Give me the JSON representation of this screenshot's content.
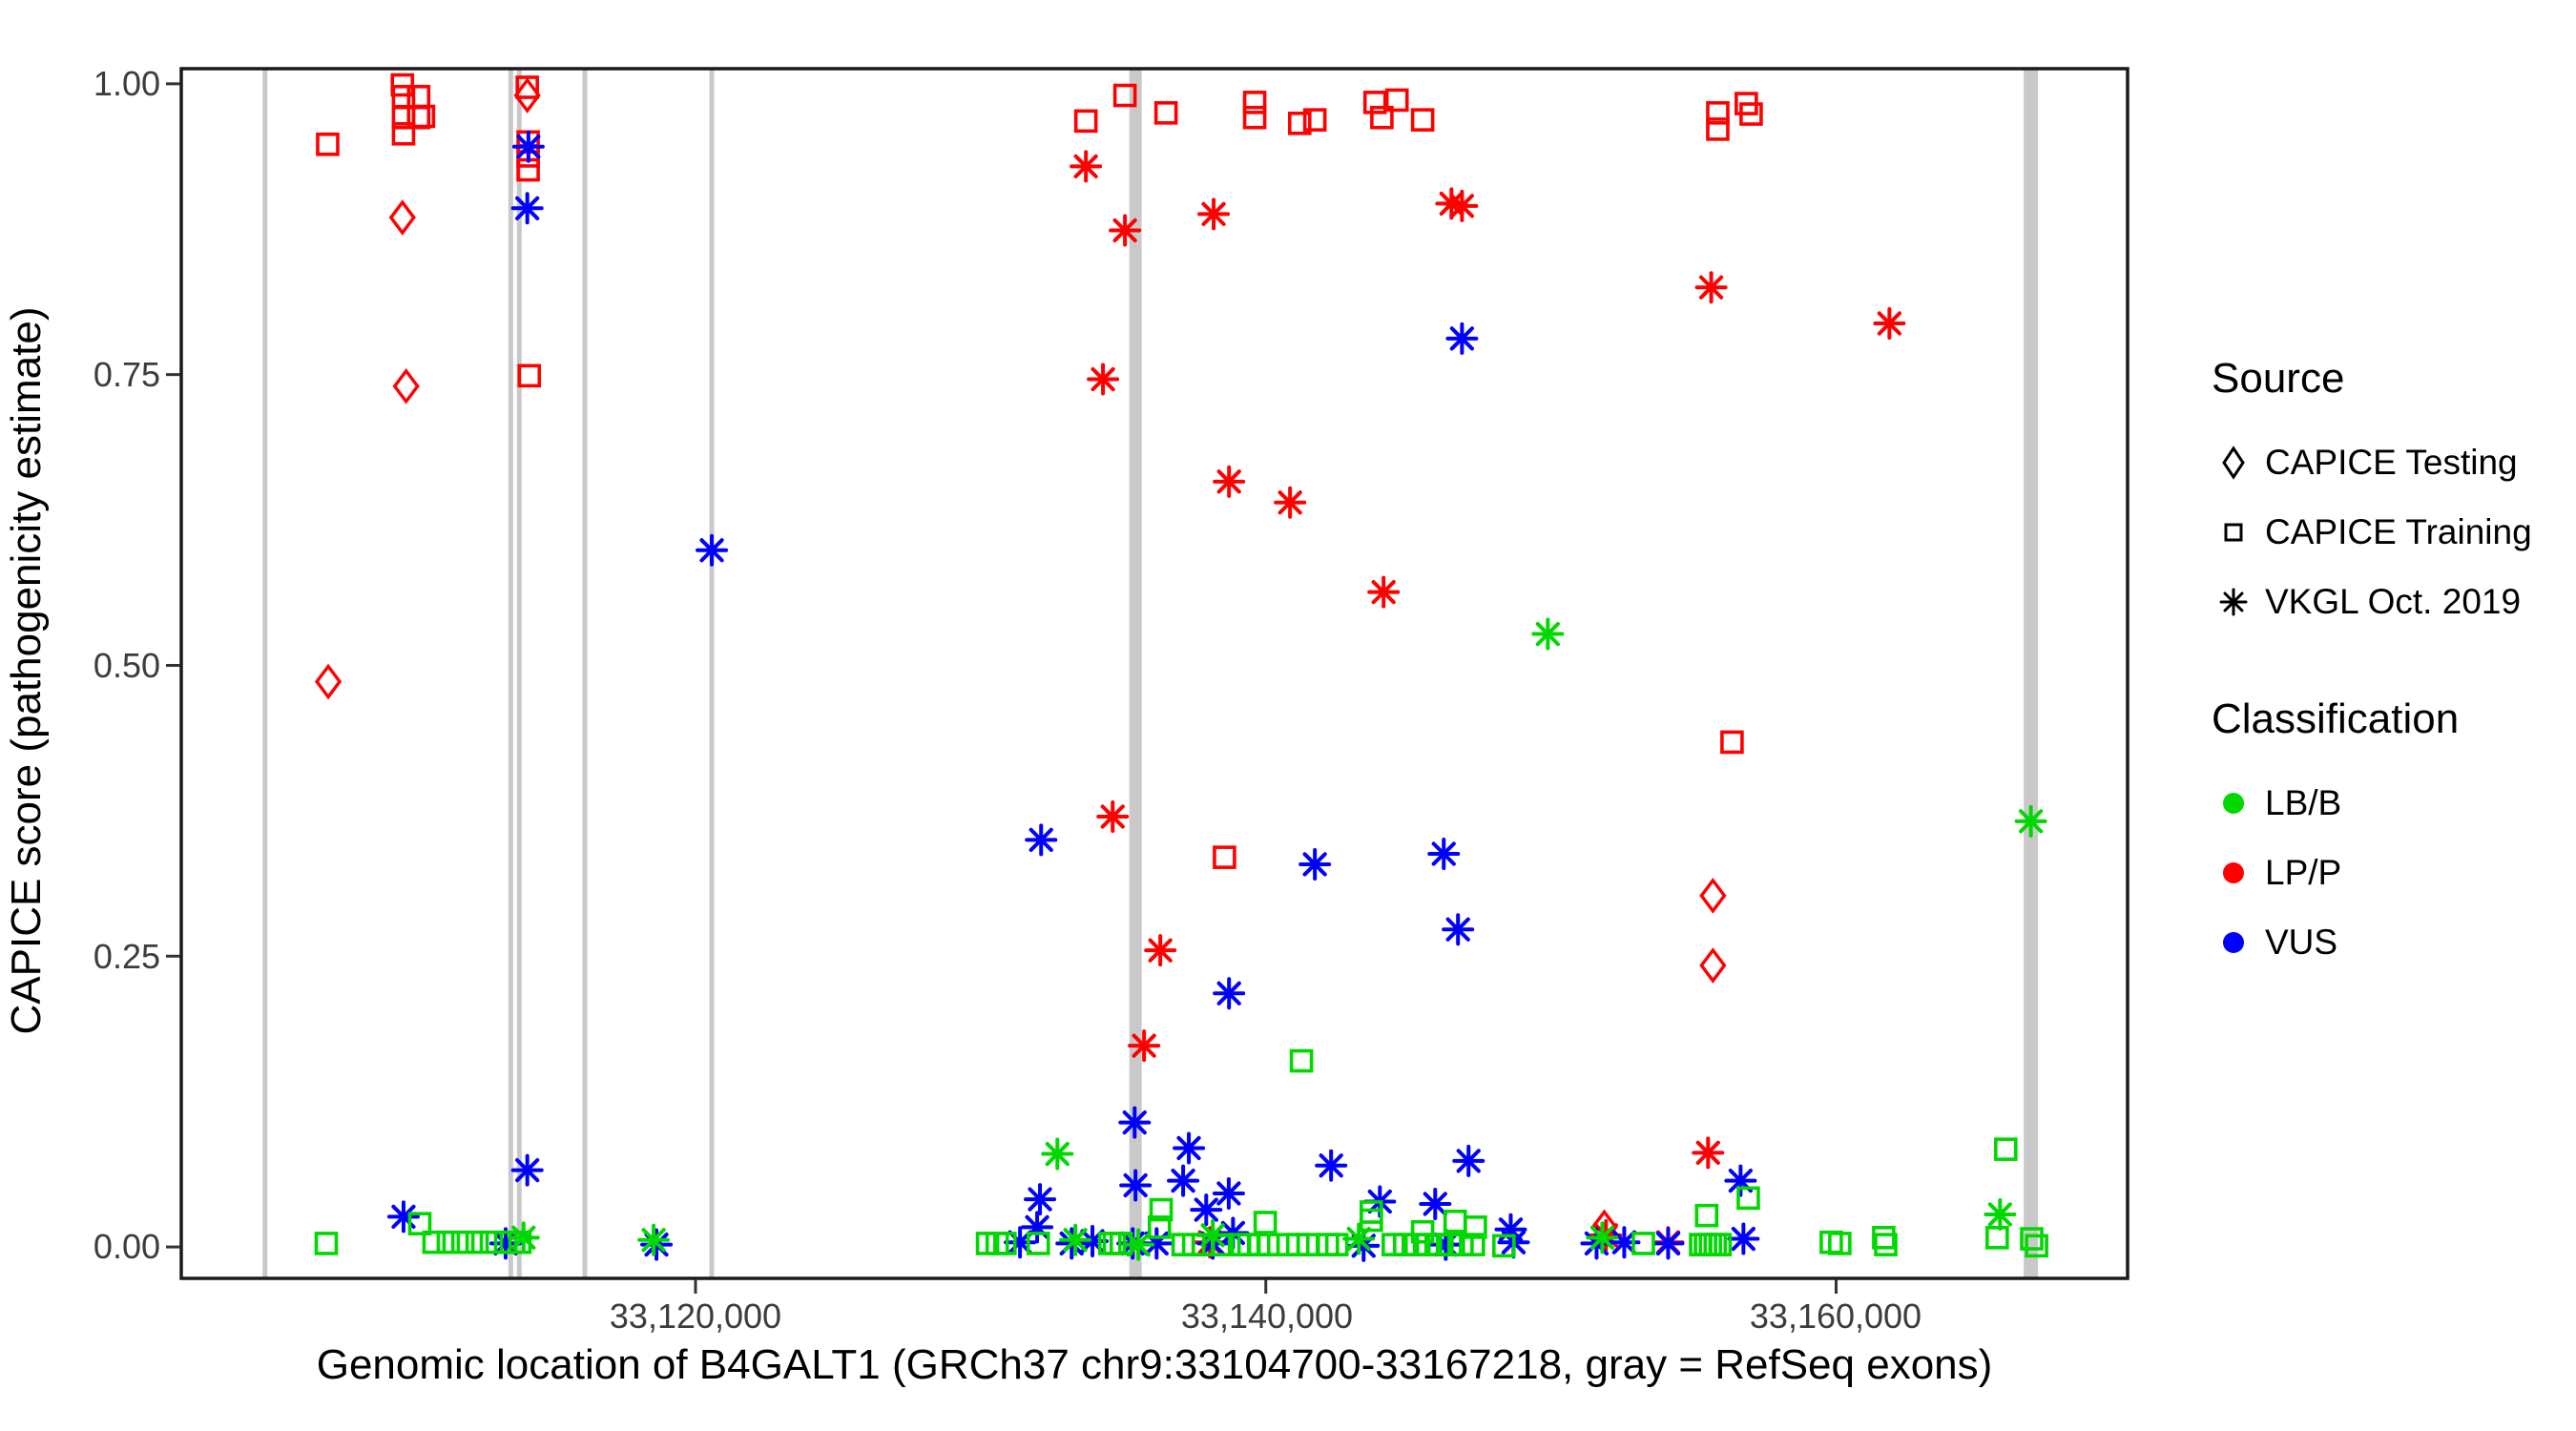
{
  "chart_data": {
    "type": "scatter",
    "xlabel": "Genomic location of B4GALT1 (GRCh37 chr9:33104700-33167218, gray = RefSeq exons)",
    "ylabel": "CAPICE score (pathogenicity estimate)",
    "x_ticks": [
      {
        "value": 33120000,
        "label": "33,120,000"
      },
      {
        "value": 33140000,
        "label": "33,140,000"
      },
      {
        "value": 33160000,
        "label": "33,160,000"
      }
    ],
    "y_ticks": [
      {
        "value": 1.0,
        "label": "1.00"
      },
      {
        "value": 0.75,
        "label": "0.75"
      },
      {
        "value": 0.5,
        "label": "0.50"
      },
      {
        "value": 0.25,
        "label": "0.25"
      },
      {
        "value": 0.0,
        "label": "0.00"
      }
    ],
    "x_domain": [
      33101965,
      33170222
    ],
    "y_domain": [
      -0.027,
      1.013
    ],
    "grid": "off",
    "colors": {
      "LPP": "#FF0000",
      "LBB": "#00D800",
      "VUS": "#0000FF",
      "exon": "#C9C9C9",
      "axis": "#1a1a1a"
    },
    "exons_px_width_note": "gray vertical bars = RefSeq exons",
    "exons": [
      {
        "bp": 33104900,
        "w": 5
      },
      {
        "bp": 33113520,
        "w": 5
      },
      {
        "bp": 33113820,
        "w": 5
      },
      {
        "bp": 33116120,
        "w": 5
      },
      {
        "bp": 33120570,
        "w": 5
      },
      {
        "bp": 33135430,
        "w": 13
      },
      {
        "bp": 33166830,
        "w": 15
      }
    ],
    "points": [
      {
        "b": 33107100,
        "s": 0.948,
        "src": "tr",
        "c": "P"
      },
      {
        "b": 33109720,
        "s": 0.999,
        "src": "tr",
        "c": "P"
      },
      {
        "b": 33109760,
        "s": 0.989,
        "src": "tr",
        "c": "P"
      },
      {
        "b": 33110290,
        "s": 0.989,
        "src": "tr",
        "c": "P"
      },
      {
        "b": 33110460,
        "s": 0.972,
        "src": "tr",
        "c": "P"
      },
      {
        "b": 33109760,
        "s": 0.971,
        "src": "tr",
        "c": "P"
      },
      {
        "b": 33110290,
        "s": 0.971,
        "src": "tr",
        "c": "P"
      },
      {
        "b": 33109760,
        "s": 0.957,
        "src": "tr",
        "c": "P"
      },
      {
        "b": 33114100,
        "s": 0.997,
        "src": "tr",
        "c": "P"
      },
      {
        "b": 33114130,
        "s": 0.95,
        "src": "tr",
        "c": "P"
      },
      {
        "b": 33114130,
        "s": 0.938,
        "src": "tr",
        "c": "P"
      },
      {
        "b": 33114130,
        "s": 0.926,
        "src": "tr",
        "c": "P"
      },
      {
        "b": 33114170,
        "s": 0.749,
        "src": "tr",
        "c": "P"
      },
      {
        "b": 33133690,
        "s": 0.968,
        "src": "tr",
        "c": "P"
      },
      {
        "b": 33135060,
        "s": 0.99,
        "src": "tr",
        "c": "P"
      },
      {
        "b": 33136500,
        "s": 0.975,
        "src": "tr",
        "c": "P"
      },
      {
        "b": 33139610,
        "s": 0.984,
        "src": "tr",
        "c": "P"
      },
      {
        "b": 33139610,
        "s": 0.971,
        "src": "tr",
        "c": "P"
      },
      {
        "b": 33141190,
        "s": 0.966,
        "src": "tr",
        "c": "P"
      },
      {
        "b": 33141720,
        "s": 0.969,
        "src": "tr",
        "c": "P"
      },
      {
        "b": 33143830,
        "s": 0.984,
        "src": "tr",
        "c": "P"
      },
      {
        "b": 33144600,
        "s": 0.986,
        "src": "tr",
        "c": "P"
      },
      {
        "b": 33144070,
        "s": 0.971,
        "src": "tr",
        "c": "P"
      },
      {
        "b": 33145500,
        "s": 0.969,
        "src": "tr",
        "c": "P"
      },
      {
        "b": 33155850,
        "s": 0.975,
        "src": "tr",
        "c": "P"
      },
      {
        "b": 33155850,
        "s": 0.961,
        "src": "tr",
        "c": "P"
      },
      {
        "b": 33156850,
        "s": 0.983,
        "src": "tr",
        "c": "P"
      },
      {
        "b": 33157020,
        "s": 0.974,
        "src": "tr",
        "c": "P"
      },
      {
        "b": 33156350,
        "s": 0.434,
        "src": "tr",
        "c": "P"
      },
      {
        "b": 33138550,
        "s": 0.335,
        "src": "tr",
        "c": "P"
      },
      {
        "b": 33109720,
        "s": 0.885,
        "src": "te",
        "c": "P"
      },
      {
        "b": 33109850,
        "s": 0.74,
        "src": "te",
        "c": "P"
      },
      {
        "b": 33107120,
        "s": 0.486,
        "src": "te",
        "c": "P"
      },
      {
        "b": 33114100,
        "s": 0.99,
        "src": "te",
        "c": "P"
      },
      {
        "b": 33155680,
        "s": 0.302,
        "src": "te",
        "c": "P"
      },
      {
        "b": 33155680,
        "s": 0.242,
        "src": "te",
        "c": "P"
      },
      {
        "b": 33151870,
        "s": 0.017,
        "src": "te",
        "c": "P"
      },
      {
        "b": 33133690,
        "s": 0.929,
        "src": "vk",
        "c": "P"
      },
      {
        "b": 33135060,
        "s": 0.874,
        "src": "vk",
        "c": "P"
      },
      {
        "b": 33134290,
        "s": 0.746,
        "src": "vk",
        "c": "P"
      },
      {
        "b": 33138170,
        "s": 0.888,
        "src": "vk",
        "c": "P"
      },
      {
        "b": 33146510,
        "s": 0.897,
        "src": "vk",
        "c": "P"
      },
      {
        "b": 33146880,
        "s": 0.895,
        "src": "vk",
        "c": "P"
      },
      {
        "b": 33138710,
        "s": 0.658,
        "src": "vk",
        "c": "P"
      },
      {
        "b": 33140850,
        "s": 0.64,
        "src": "vk",
        "c": "P"
      },
      {
        "b": 33144130,
        "s": 0.563,
        "src": "vk",
        "c": "P"
      },
      {
        "b": 33134630,
        "s": 0.37,
        "src": "vk",
        "c": "P"
      },
      {
        "b": 33136300,
        "s": 0.255,
        "src": "vk",
        "c": "P"
      },
      {
        "b": 33135730,
        "s": 0.173,
        "src": "vk",
        "c": "P"
      },
      {
        "b": 33155620,
        "s": 0.825,
        "src": "vk",
        "c": "P"
      },
      {
        "b": 33161870,
        "s": 0.794,
        "src": "vk",
        "c": "P"
      },
      {
        "b": 33155510,
        "s": 0.081,
        "src": "vk",
        "c": "P"
      },
      {
        "b": 33151930,
        "s": 0.01,
        "src": "vk",
        "c": "P"
      },
      {
        "b": 33154110,
        "s": 0.004,
        "src": "vk",
        "c": "P"
      },
      {
        "b": 33138040,
        "s": 0.004,
        "src": "vk",
        "c": "P"
      },
      {
        "b": 33114140,
        "s": 0.946,
        "src": "vk",
        "c": "U"
      },
      {
        "b": 33114100,
        "s": 0.893,
        "src": "vk",
        "c": "U"
      },
      {
        "b": 33120570,
        "s": 0.599,
        "src": "vk",
        "c": "U"
      },
      {
        "b": 33146880,
        "s": 0.781,
        "src": "vk",
        "c": "U"
      },
      {
        "b": 33132120,
        "s": 0.35,
        "src": "vk",
        "c": "U"
      },
      {
        "b": 33141720,
        "s": 0.329,
        "src": "vk",
        "c": "U"
      },
      {
        "b": 33146240,
        "s": 0.338,
        "src": "vk",
        "c": "U"
      },
      {
        "b": 33146740,
        "s": 0.273,
        "src": "vk",
        "c": "U"
      },
      {
        "b": 33138710,
        "s": 0.218,
        "src": "vk",
        "c": "U"
      },
      {
        "b": 33135400,
        "s": 0.107,
        "src": "vk",
        "c": "U"
      },
      {
        "b": 33137300,
        "s": 0.085,
        "src": "vk",
        "c": "U"
      },
      {
        "b": 33147110,
        "s": 0.074,
        "src": "vk",
        "c": "U"
      },
      {
        "b": 33142290,
        "s": 0.07,
        "src": "vk",
        "c": "U"
      },
      {
        "b": 33114100,
        "s": 0.066,
        "src": "vk",
        "c": "U"
      },
      {
        "b": 33156650,
        "s": 0.057,
        "src": "vk",
        "c": "U"
      },
      {
        "b": 33137100,
        "s": 0.057,
        "src": "vk",
        "c": "U"
      },
      {
        "b": 33135430,
        "s": 0.053,
        "src": "vk",
        "c": "U"
      },
      {
        "b": 33138700,
        "s": 0.046,
        "src": "vk",
        "c": "U"
      },
      {
        "b": 33132080,
        "s": 0.041,
        "src": "vk",
        "c": "U"
      },
      {
        "b": 33144000,
        "s": 0.039,
        "src": "vk",
        "c": "U"
      },
      {
        "b": 33145940,
        "s": 0.037,
        "src": "vk",
        "c": "U"
      },
      {
        "b": 33137910,
        "s": 0.032,
        "src": "vk",
        "c": "U"
      },
      {
        "b": 33109760,
        "s": 0.026,
        "src": "vk",
        "c": "U"
      },
      {
        "b": 33131980,
        "s": 0.017,
        "src": "vk",
        "c": "U"
      },
      {
        "b": 33148590,
        "s": 0.015,
        "src": "vk",
        "c": "U"
      },
      {
        "b": 33138850,
        "s": 0.012,
        "src": "vk",
        "c": "U"
      },
      {
        "b": 33156750,
        "s": 0.007,
        "src": "vk",
        "c": "U"
      },
      {
        "b": 33133920,
        "s": 0.005,
        "src": "vk",
        "c": "U"
      },
      {
        "b": 33131380,
        "s": 0.004,
        "src": "vk",
        "c": "U"
      },
      {
        "b": 33152570,
        "s": 0.004,
        "src": "vk",
        "c": "U"
      },
      {
        "b": 33148690,
        "s": 0.004,
        "src": "vk",
        "c": "U"
      },
      {
        "b": 33113340,
        "s": 0.003,
        "src": "vk",
        "c": "U"
      },
      {
        "b": 33133190,
        "s": 0.003,
        "src": "vk",
        "c": "U"
      },
      {
        "b": 33135330,
        "s": 0.003,
        "src": "vk",
        "c": "U"
      },
      {
        "b": 33136170,
        "s": 0.003,
        "src": "vk",
        "c": "U"
      },
      {
        "b": 33138140,
        "s": 0.003,
        "src": "vk",
        "c": "U"
      },
      {
        "b": 33151600,
        "s": 0.003,
        "src": "vk",
        "c": "U"
      },
      {
        "b": 33154110,
        "s": 0.003,
        "src": "vk",
        "c": "U"
      },
      {
        "b": 33118630,
        "s": 0.002,
        "src": "vk",
        "c": "U"
      },
      {
        "b": 33146310,
        "s": 0.002,
        "src": "vk",
        "c": "U"
      },
      {
        "b": 33143430,
        "s": 0.001,
        "src": "vk",
        "c": "U"
      },
      {
        "b": 33149890,
        "s": 0.527,
        "src": "vk",
        "c": "B"
      },
      {
        "b": 33166830,
        "s": 0.366,
        "src": "vk",
        "c": "B"
      },
      {
        "b": 33132690,
        "s": 0.08,
        "src": "vk",
        "c": "B"
      },
      {
        "b": 33165750,
        "s": 0.028,
        "src": "vk",
        "c": "B"
      },
      {
        "b": 33138140,
        "s": 0.01,
        "src": "vk",
        "c": "B"
      },
      {
        "b": 33113970,
        "s": 0.008,
        "src": "vk",
        "c": "B"
      },
      {
        "b": 33151800,
        "s": 0.008,
        "src": "vk",
        "c": "B"
      },
      {
        "b": 33143260,
        "s": 0.007,
        "src": "vk",
        "c": "B"
      },
      {
        "b": 33118530,
        "s": 0.006,
        "src": "vk",
        "c": "B"
      },
      {
        "b": 33133320,
        "s": 0.006,
        "src": "vk",
        "c": "B"
      },
      {
        "b": 33135530,
        "s": 0.002,
        "src": "vk",
        "c": "B"
      },
      {
        "b": 33141250,
        "s": 0.16,
        "src": "tr",
        "c": "B"
      },
      {
        "b": 33165950,
        "s": 0.084,
        "src": "tr",
        "c": "B"
      },
      {
        "b": 33156920,
        "s": 0.042,
        "src": "tr",
        "c": "B"
      },
      {
        "b": 33136330,
        "s": 0.032,
        "src": "tr",
        "c": "B"
      },
      {
        "b": 33143700,
        "s": 0.03,
        "src": "tr",
        "c": "B"
      },
      {
        "b": 33143700,
        "s": 0.023,
        "src": "tr",
        "c": "B"
      },
      {
        "b": 33146640,
        "s": 0.022,
        "src": "tr",
        "c": "B"
      },
      {
        "b": 33139980,
        "s": 0.021,
        "src": "tr",
        "c": "B"
      },
      {
        "b": 33110330,
        "s": 0.02,
        "src": "tr",
        "c": "B"
      },
      {
        "b": 33136270,
        "s": 0.017,
        "src": "tr",
        "c": "B"
      },
      {
        "b": 33147350,
        "s": 0.017,
        "src": "tr",
        "c": "B"
      },
      {
        "b": 33155460,
        "s": 0.027,
        "src": "tr",
        "c": "B"
      },
      {
        "b": 33145500,
        "s": 0.013,
        "src": "tr",
        "c": "B"
      },
      {
        "b": 33161670,
        "s": 0.008,
        "src": "tr",
        "c": "B"
      },
      {
        "b": 33165650,
        "s": 0.008,
        "src": "tr",
        "c": "B"
      },
      {
        "b": 33166860,
        "s": 0.007,
        "src": "tr",
        "c": "B"
      },
      {
        "b": 33159830,
        "s": 0.004,
        "src": "tr",
        "c": "B"
      },
      {
        "b": 33160130,
        "s": 0.003,
        "src": "tr",
        "c": "B"
      },
      {
        "b": 33161740,
        "s": 0.002,
        "src": "tr",
        "c": "B"
      },
      {
        "b": 33148350,
        "s": 0.001,
        "src": "tr",
        "c": "B"
      },
      {
        "b": 33153240,
        "s": 0.003,
        "src": "tr",
        "c": "B"
      },
      {
        "b": 33167030,
        "s": 0.001,
        "src": "tr",
        "c": "B"
      },
      {
        "b": 33107050,
        "s": 0.003,
        "src": "tr",
        "c": "B"
      },
      {
        "b": 33110830,
        "s": 0.004,
        "src": "tr",
        "c": "B"
      },
      {
        "b": 33111330,
        "s": 0.004,
        "src": "tr",
        "c": "B"
      },
      {
        "b": 33111840,
        "s": 0.004,
        "src": "tr",
        "c": "B"
      },
      {
        "b": 33112340,
        "s": 0.004,
        "src": "tr",
        "c": "B"
      },
      {
        "b": 33112840,
        "s": 0.004,
        "src": "tr",
        "c": "B"
      },
      {
        "b": 33113340,
        "s": 0.004,
        "src": "tr",
        "c": "B"
      },
      {
        "b": 33113840,
        "s": 0.004,
        "src": "tr",
        "c": "B"
      },
      {
        "b": 33130240,
        "s": 0.003,
        "src": "tr",
        "c": "B"
      },
      {
        "b": 33130580,
        "s": 0.003,
        "src": "tr",
        "c": "B"
      },
      {
        "b": 33130850,
        "s": 0.003,
        "src": "tr",
        "c": "B"
      },
      {
        "b": 33132020,
        "s": 0.003,
        "src": "tr",
        "c": "B"
      },
      {
        "b": 33134530,
        "s": 0.003,
        "src": "tr",
        "c": "B"
      },
      {
        "b": 33134690,
        "s": 0.003,
        "src": "tr",
        "c": "B"
      },
      {
        "b": 33134930,
        "s": 0.003,
        "src": "tr",
        "c": "B"
      },
      {
        "b": 33137100,
        "s": 0.002,
        "src": "tr",
        "c": "B"
      },
      {
        "b": 33137470,
        "s": 0.002,
        "src": "tr",
        "c": "B"
      },
      {
        "b": 33137810,
        "s": 0.002,
        "src": "tr",
        "c": "B"
      },
      {
        "b": 33138480,
        "s": 0.002,
        "src": "tr",
        "c": "B"
      },
      {
        "b": 33139080,
        "s": 0.002,
        "src": "tr",
        "c": "B"
      },
      {
        "b": 33139410,
        "s": 0.002,
        "src": "tr",
        "c": "B"
      },
      {
        "b": 33139750,
        "s": 0.002,
        "src": "tr",
        "c": "B"
      },
      {
        "b": 33140080,
        "s": 0.002,
        "src": "tr",
        "c": "B"
      },
      {
        "b": 33140780,
        "s": 0.002,
        "src": "tr",
        "c": "B"
      },
      {
        "b": 33141120,
        "s": 0.002,
        "src": "tr",
        "c": "B"
      },
      {
        "b": 33141490,
        "s": 0.002,
        "src": "tr",
        "c": "B"
      },
      {
        "b": 33142160,
        "s": 0.002,
        "src": "tr",
        "c": "B"
      },
      {
        "b": 33142490,
        "s": 0.002,
        "src": "tr",
        "c": "B"
      },
      {
        "b": 33144470,
        "s": 0.002,
        "src": "tr",
        "c": "B"
      },
      {
        "b": 33144870,
        "s": 0.002,
        "src": "tr",
        "c": "B"
      },
      {
        "b": 33145270,
        "s": 0.002,
        "src": "tr",
        "c": "B"
      },
      {
        "b": 33145670,
        "s": 0.002,
        "src": "tr",
        "c": "B"
      },
      {
        "b": 33146070,
        "s": 0.002,
        "src": "tr",
        "c": "B"
      },
      {
        "b": 33146480,
        "s": 0.002,
        "src": "tr",
        "c": "B"
      },
      {
        "b": 33146880,
        "s": 0.002,
        "src": "tr",
        "c": "B"
      },
      {
        "b": 33147280,
        "s": 0.002,
        "src": "tr",
        "c": "B"
      },
      {
        "b": 33155250,
        "s": 0.002,
        "src": "tr",
        "c": "B"
      },
      {
        "b": 33155420,
        "s": 0.002,
        "src": "tr",
        "c": "B"
      },
      {
        "b": 33155590,
        "s": 0.002,
        "src": "tr",
        "c": "B"
      },
      {
        "b": 33155760,
        "s": 0.002,
        "src": "tr",
        "c": "B"
      },
      {
        "b": 33155930,
        "s": 0.002,
        "src": "tr",
        "c": "B"
      }
    ]
  },
  "legend": {
    "source_title": "Source",
    "source_items": [
      {
        "key": "te",
        "label": "CAPICE Testing"
      },
      {
        "key": "tr",
        "label": "CAPICE Training"
      },
      {
        "key": "vk",
        "label": "VKGL Oct. 2019"
      }
    ],
    "classification_title": "Classification",
    "class_items": [
      {
        "key": "B",
        "label": "LB/B",
        "color": "#00D800"
      },
      {
        "key": "P",
        "label": "LP/P",
        "color": "#FF0000"
      },
      {
        "key": "U",
        "label": "VUS",
        "color": "#0000FF"
      }
    ]
  }
}
